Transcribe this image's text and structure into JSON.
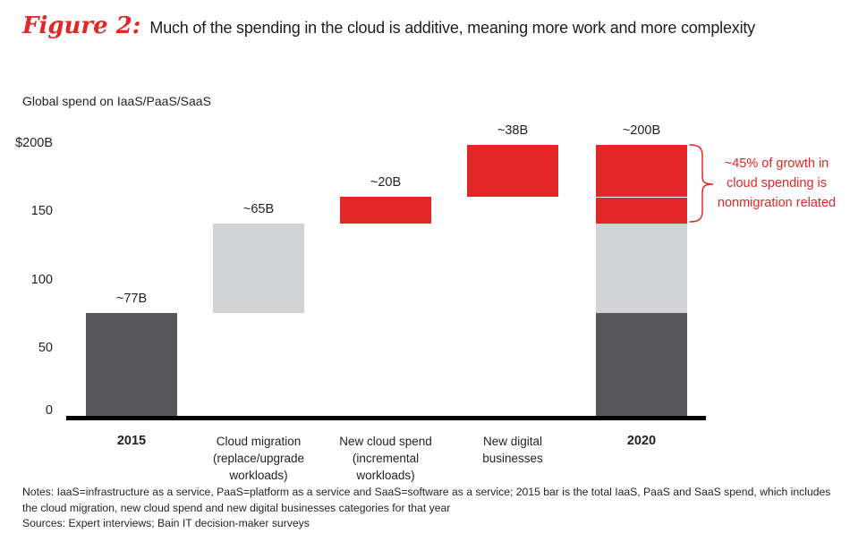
{
  "header": {
    "figure_label": "Figure 2:",
    "title": "Much of the spending in the cloud is additive, meaning more work and more complexity"
  },
  "colors": {
    "accent_red": "#e32726",
    "dark_gray": "#58585a",
    "light_gray": "#d1d3d4",
    "text": "#231f20",
    "axis": "#000000"
  },
  "chart_data": {
    "type": "bar",
    "subtype": "waterfall",
    "title": "Global spend on IaaS/PaaS/SaaS",
    "y_axis": {
      "min": 0,
      "max": 200,
      "ticks": [
        {
          "value": 0,
          "label": "0"
        },
        {
          "value": 50,
          "label": "50"
        },
        {
          "value": 100,
          "label": "100"
        },
        {
          "value": 150,
          "label": "150"
        },
        {
          "value": 200,
          "label": "$200B"
        }
      ]
    },
    "grid": false,
    "legend": false,
    "categories": [
      "2015",
      "Cloud migration (replace/upgrade workloads)",
      "New cloud spend (incremental workloads)",
      "New digital businesses",
      "2020"
    ],
    "bars": [
      {
        "category": "2015",
        "label": "2015",
        "bold": true,
        "value_label": "~77B",
        "start": 0,
        "end": 77,
        "color": "dark"
      },
      {
        "category": "Cloud migration (replace/upgrade workloads)",
        "label": "Cloud migration\n(replace/upgrade\nworkloads)",
        "bold": false,
        "value_label": "~65B",
        "start": 77,
        "end": 142,
        "color": "light"
      },
      {
        "category": "New cloud spend (incremental workloads)",
        "label": "New cloud spend\n(incremental\nworkloads)",
        "bold": false,
        "value_label": "~20B",
        "start": 142,
        "end": 162,
        "color": "red"
      },
      {
        "category": "New digital businesses",
        "label": "New digital\nbusinesses",
        "bold": false,
        "value_label": "~38B",
        "start": 162,
        "end": 200,
        "color": "red"
      },
      {
        "category": "2020",
        "label": "2020",
        "bold": true,
        "value_label": "~200B",
        "start": 0,
        "end": 200,
        "segments": [
          {
            "name": "2015 base spend",
            "value": 77,
            "color": "dark"
          },
          {
            "name": "Cloud migration",
            "value": 65,
            "color": "light"
          },
          {
            "name": "New cloud spend",
            "value": 20,
            "color": "red"
          },
          {
            "name": "New digital businesses",
            "value": 38,
            "color": "red"
          }
        ]
      }
    ],
    "annotation": "~45% of growth in\ncloud spending is\nnonmigration related"
  },
  "footer": {
    "notes": "Notes: IaaS=infrastructure as a service, PaaS=platform as a service and SaaS=software as a service; 2015 bar is the total IaaS, PaaS and SaaS spend, which includes the cloud migration, new cloud spend and new digital businesses categories for that year",
    "sources": "Sources: Expert interviews; Bain IT decision-maker surveys"
  }
}
